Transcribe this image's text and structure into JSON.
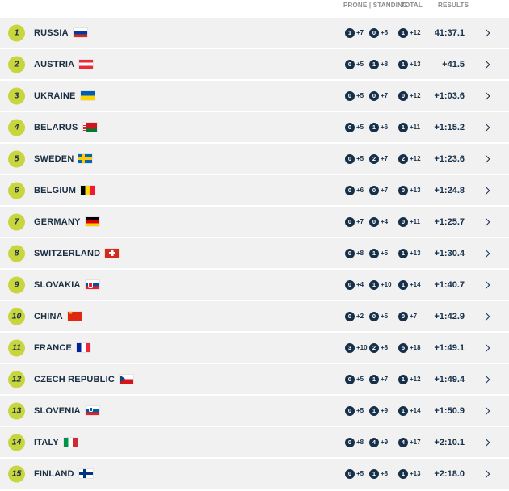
{
  "header": {
    "prone_standing": "PRONE | STANDING",
    "total": "TOTAL",
    "results": "RESULTS"
  },
  "colors": {
    "rank_badge": "#c9d53c",
    "navy": "#16304a",
    "row_background": "#f1f1f2",
    "header_text": "#8b8b8b"
  },
  "icons": {
    "row_action": "chevron-right-icon",
    "flags": [
      "russia",
      "austria",
      "ukraine",
      "belarus",
      "sweden",
      "belgium",
      "germany",
      "switzerland",
      "slovakia",
      "china",
      "france",
      "czech-republic",
      "slovenia",
      "italy",
      "finland"
    ]
  },
  "rows": [
    {
      "rank": "1",
      "country": "RUSSIA",
      "flag": "russia",
      "prone": "1",
      "prone_extra": "+7",
      "standing": "0",
      "standing_extra": "+5",
      "total": "1",
      "total_extra": "+12",
      "result": "41:37.1"
    },
    {
      "rank": "2",
      "country": "AUSTRIA",
      "flag": "austria",
      "prone": "0",
      "prone_extra": "+5",
      "standing": "1",
      "standing_extra": "+8",
      "total": "1",
      "total_extra": "+13",
      "result": "+41.5"
    },
    {
      "rank": "3",
      "country": "UKRAINE",
      "flag": "ukraine",
      "prone": "0",
      "prone_extra": "+5",
      "standing": "0",
      "standing_extra": "+7",
      "total": "0",
      "total_extra": "+12",
      "result": "+1:03.6"
    },
    {
      "rank": "4",
      "country": "BELARUS",
      "flag": "belarus",
      "prone": "0",
      "prone_extra": "+5",
      "standing": "1",
      "standing_extra": "+6",
      "total": "1",
      "total_extra": "+11",
      "result": "+1:15.2"
    },
    {
      "rank": "5",
      "country": "SWEDEN",
      "flag": "sweden",
      "prone": "0",
      "prone_extra": "+5",
      "standing": "2",
      "standing_extra": "+7",
      "total": "2",
      "total_extra": "+12",
      "result": "+1:23.6"
    },
    {
      "rank": "6",
      "country": "BELGIUM",
      "flag": "belgium",
      "prone": "0",
      "prone_extra": "+6",
      "standing": "0",
      "standing_extra": "+7",
      "total": "0",
      "total_extra": "+13",
      "result": "+1:24.8"
    },
    {
      "rank": "7",
      "country": "GERMANY",
      "flag": "germany",
      "prone": "0",
      "prone_extra": "+7",
      "standing": "0",
      "standing_extra": "+4",
      "total": "0",
      "total_extra": "+11",
      "result": "+1:25.7"
    },
    {
      "rank": "8",
      "country": "SWITZERLAND",
      "flag": "switzerland",
      "prone": "0",
      "prone_extra": "+8",
      "standing": "1",
      "standing_extra": "+5",
      "total": "1",
      "total_extra": "+13",
      "result": "+1:30.4"
    },
    {
      "rank": "9",
      "country": "SLOVAKIA",
      "flag": "slovakia",
      "prone": "0",
      "prone_extra": "+4",
      "standing": "1",
      "standing_extra": "+10",
      "total": "1",
      "total_extra": "+14",
      "result": "+1:40.7"
    },
    {
      "rank": "10",
      "country": "CHINA",
      "flag": "china",
      "prone": "0",
      "prone_extra": "+2",
      "standing": "0",
      "standing_extra": "+5",
      "total": "0",
      "total_extra": "+7",
      "result": "+1:42.9"
    },
    {
      "rank": "11",
      "country": "FRANCE",
      "flag": "france",
      "prone": "3",
      "prone_extra": "+10",
      "standing": "2",
      "standing_extra": "+8",
      "total": "5",
      "total_extra": "+18",
      "result": "+1:49.1"
    },
    {
      "rank": "12",
      "country": "CZECH REPUBLIC",
      "flag": "czech-republic",
      "prone": "0",
      "prone_extra": "+5",
      "standing": "1",
      "standing_extra": "+7",
      "total": "1",
      "total_extra": "+12",
      "result": "+1:49.4"
    },
    {
      "rank": "13",
      "country": "SLOVENIA",
      "flag": "slovenia",
      "prone": "0",
      "prone_extra": "+5",
      "standing": "1",
      "standing_extra": "+9",
      "total": "1",
      "total_extra": "+14",
      "result": "+1:50.9"
    },
    {
      "rank": "14",
      "country": "ITALY",
      "flag": "italy",
      "prone": "0",
      "prone_extra": "+8",
      "standing": "4",
      "standing_extra": "+9",
      "total": "4",
      "total_extra": "+17",
      "result": "+2:10.1"
    },
    {
      "rank": "15",
      "country": "FINLAND",
      "flag": "finland",
      "prone": "0",
      "prone_extra": "+5",
      "standing": "1",
      "standing_extra": "+8",
      "total": "1",
      "total_extra": "+13",
      "result": "+2:18.0"
    }
  ]
}
